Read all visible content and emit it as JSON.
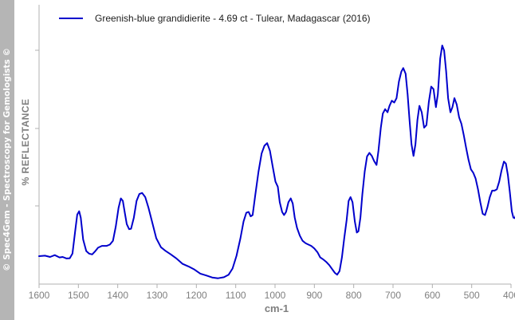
{
  "watermark": "© Spec4Gem - Spectroscopy for Gemologists ©",
  "chart_data": {
    "type": "line",
    "title": "",
    "xlabel": "cm-1",
    "ylabel": "% REFLECTANCE",
    "xlim": [
      1600,
      400
    ],
    "x_reversed": true,
    "xticks": [
      1600,
      1500,
      1400,
      1300,
      1200,
      1100,
      1000,
      900,
      800,
      700,
      600,
      500,
      400
    ],
    "y_tick_labels_shown": false,
    "grid": false,
    "legend_position": "top-left",
    "series": [
      {
        "name": "Greenish-blue grandidierite - 4.69 ct - Tulear, Madagascar (2016)",
        "color": "#0000cc",
        "points": [
          [
            1600,
            0.09
          ],
          [
            1585,
            0.092
          ],
          [
            1572,
            0.087
          ],
          [
            1560,
            0.094
          ],
          [
            1548,
            0.085
          ],
          [
            1540,
            0.087
          ],
          [
            1530,
            0.081
          ],
          [
            1522,
            0.082
          ],
          [
            1515,
            0.1
          ],
          [
            1508,
            0.19
          ],
          [
            1503,
            0.252
          ],
          [
            1498,
            0.265
          ],
          [
            1494,
            0.24
          ],
          [
            1488,
            0.155
          ],
          [
            1480,
            0.11
          ],
          [
            1473,
            0.1
          ],
          [
            1465,
            0.097
          ],
          [
            1458,
            0.108
          ],
          [
            1450,
            0.123
          ],
          [
            1440,
            0.13
          ],
          [
            1428,
            0.13
          ],
          [
            1420,
            0.135
          ],
          [
            1412,
            0.15
          ],
          [
            1405,
            0.205
          ],
          [
            1398,
            0.278
          ],
          [
            1392,
            0.315
          ],
          [
            1387,
            0.305
          ],
          [
            1382,
            0.26
          ],
          [
            1377,
            0.215
          ],
          [
            1371,
            0.195
          ],
          [
            1366,
            0.197
          ],
          [
            1359,
            0.24
          ],
          [
            1352,
            0.305
          ],
          [
            1345,
            0.332
          ],
          [
            1338,
            0.336
          ],
          [
            1330,
            0.32
          ],
          [
            1322,
            0.28
          ],
          [
            1312,
            0.22
          ],
          [
            1302,
            0.16
          ],
          [
            1290,
            0.125
          ],
          [
            1278,
            0.11
          ],
          [
            1265,
            0.097
          ],
          [
            1250,
            0.08
          ],
          [
            1235,
            0.06
          ],
          [
            1220,
            0.05
          ],
          [
            1205,
            0.038
          ],
          [
            1190,
            0.022
          ],
          [
            1175,
            0.015
          ],
          [
            1160,
            0.007
          ],
          [
            1145,
            0.004
          ],
          [
            1130,
            0.008
          ],
          [
            1118,
            0.018
          ],
          [
            1108,
            0.042
          ],
          [
            1098,
            0.092
          ],
          [
            1088,
            0.16
          ],
          [
            1080,
            0.225
          ],
          [
            1073,
            0.259
          ],
          [
            1067,
            0.262
          ],
          [
            1062,
            0.245
          ],
          [
            1057,
            0.25
          ],
          [
            1050,
            0.33
          ],
          [
            1042,
            0.42
          ],
          [
            1034,
            0.49
          ],
          [
            1027,
            0.52
          ],
          [
            1020,
            0.53
          ],
          [
            1013,
            0.5
          ],
          [
            1006,
            0.44
          ],
          [
            999,
            0.38
          ],
          [
            993,
            0.36
          ],
          [
            988,
            0.3
          ],
          [
            982,
            0.262
          ],
          [
            977,
            0.25
          ],
          [
            972,
            0.262
          ],
          [
            966,
            0.3
          ],
          [
            960,
            0.315
          ],
          [
            955,
            0.295
          ],
          [
            950,
            0.24
          ],
          [
            944,
            0.2
          ],
          [
            937,
            0.17
          ],
          [
            930,
            0.15
          ],
          [
            922,
            0.14
          ],
          [
            915,
            0.135
          ],
          [
            908,
            0.13
          ],
          [
            900,
            0.12
          ],
          [
            892,
            0.105
          ],
          [
            885,
            0.085
          ],
          [
            878,
            0.078
          ],
          [
            870,
            0.068
          ],
          [
            862,
            0.055
          ],
          [
            855,
            0.04
          ],
          [
            848,
            0.025
          ],
          [
            842,
            0.018
          ],
          [
            836,
            0.032
          ],
          [
            830,
            0.085
          ],
          [
            824,
            0.16
          ],
          [
            818,
            0.23
          ],
          [
            813,
            0.305
          ],
          [
            808,
            0.32
          ],
          [
            803,
            0.3
          ],
          [
            797,
            0.225
          ],
          [
            792,
            0.182
          ],
          [
            788,
            0.187
          ],
          [
            783,
            0.24
          ],
          [
            778,
            0.33
          ],
          [
            772,
            0.42
          ],
          [
            766,
            0.478
          ],
          [
            760,
            0.492
          ],
          [
            754,
            0.48
          ],
          [
            748,
            0.46
          ],
          [
            742,
            0.445
          ],
          [
            737,
            0.5
          ],
          [
            731,
            0.59
          ],
          [
            726,
            0.645
          ],
          [
            720,
            0.662
          ],
          [
            714,
            0.65
          ],
          [
            709,
            0.675
          ],
          [
            703,
            0.695
          ],
          [
            697,
            0.688
          ],
          [
            691,
            0.705
          ],
          [
            685,
            0.77
          ],
          [
            679,
            0.808
          ],
          [
            674,
            0.822
          ],
          [
            668,
            0.8
          ],
          [
            663,
            0.72
          ],
          [
            658,
            0.62
          ],
          [
            653,
            0.525
          ],
          [
            648,
            0.48
          ],
          [
            643,
            0.525
          ],
          [
            638,
            0.62
          ],
          [
            633,
            0.675
          ],
          [
            627,
            0.65
          ],
          [
            621,
            0.59
          ],
          [
            615,
            0.6
          ],
          [
            609,
            0.69
          ],
          [
            603,
            0.75
          ],
          [
            597,
            0.74
          ],
          [
            591,
            0.67
          ],
          [
            586,
            0.72
          ],
          [
            580,
            0.86
          ],
          [
            575,
            0.91
          ],
          [
            570,
            0.89
          ],
          [
            565,
            0.81
          ],
          [
            560,
            0.705
          ],
          [
            554,
            0.65
          ],
          [
            549,
            0.67
          ],
          [
            544,
            0.705
          ],
          [
            538,
            0.68
          ],
          [
            532,
            0.63
          ],
          [
            526,
            0.605
          ],
          [
            520,
            0.56
          ],
          [
            514,
            0.51
          ],
          [
            508,
            0.465
          ],
          [
            502,
            0.428
          ],
          [
            496,
            0.415
          ],
          [
            490,
            0.392
          ],
          [
            484,
            0.35
          ],
          [
            478,
            0.3
          ],
          [
            472,
            0.255
          ],
          [
            466,
            0.25
          ],
          [
            460,
            0.28
          ],
          [
            454,
            0.32
          ],
          [
            448,
            0.345
          ],
          [
            442,
            0.345
          ],
          [
            436,
            0.35
          ],
          [
            430,
            0.38
          ],
          [
            424,
            0.425
          ],
          [
            418,
            0.458
          ],
          [
            413,
            0.45
          ],
          [
            408,
            0.405
          ],
          [
            403,
            0.34
          ],
          [
            398,
            0.265
          ],
          [
            394,
            0.24
          ],
          [
            390,
            0.238
          ],
          [
            386,
            0.258
          ]
        ]
      }
    ]
  }
}
